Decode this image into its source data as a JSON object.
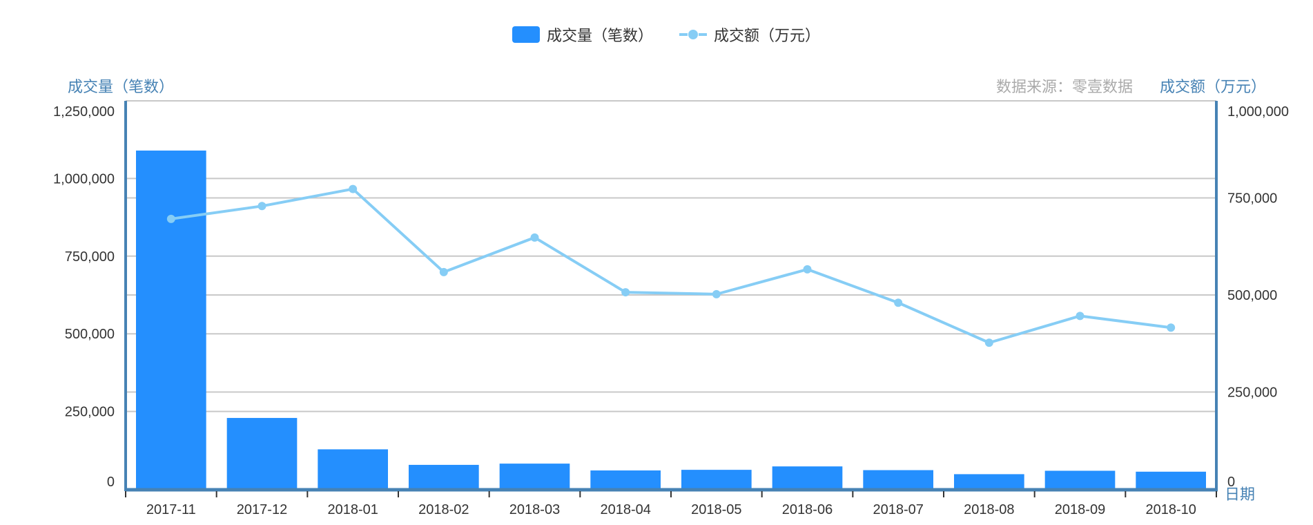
{
  "legend": {
    "bar_label": "成交量（笔数）",
    "line_label": "成交额（万元）"
  },
  "axes": {
    "left_title": "成交量（笔数）",
    "right_title": "成交额（万元）",
    "x_title": "日期",
    "source": "数据来源：零壹数据",
    "left_ticks": [
      "0",
      "250,000",
      "500,000",
      "750,000",
      "1,000,000",
      "1,250,000"
    ],
    "right_ticks": [
      "0",
      "250,000",
      "500,000",
      "750,000",
      "1,000,000"
    ]
  },
  "colors": {
    "bar": "#248ffe",
    "line": "#86cdf5",
    "axis": "#4682b4",
    "grid": "#c8c8c8",
    "tick_text": "#333333",
    "source_text": "#aaaaaa"
  },
  "chart_data": {
    "type": "bar",
    "title": "",
    "xlabel": "日期",
    "ylabel": "成交量（笔数）",
    "y2label": "成交额（万元）",
    "source": "数据来源：零壹数据",
    "categories": [
      "2017-11",
      "2017-12",
      "2018-01",
      "2018-02",
      "2018-03",
      "2018-04",
      "2018-05",
      "2018-06",
      "2018-07",
      "2018-08",
      "2018-09",
      "2018-10"
    ],
    "series": [
      {
        "name": "成交量（笔数）",
        "type": "bar",
        "axis": "left",
        "values": [
          1090000,
          229000,
          128000,
          78000,
          82000,
          60000,
          62000,
          73000,
          61000,
          48000,
          59000,
          56000
        ]
      },
      {
        "name": "成交额（万元）",
        "type": "line",
        "axis": "right",
        "values": [
          696000,
          729000,
          773000,
          559000,
          648000,
          507000,
          502000,
          566000,
          480000,
          377000,
          446000,
          416000
        ]
      }
    ],
    "ylim": [
      0,
      1250000
    ],
    "y2lim": [
      0,
      1000000
    ],
    "grid": true,
    "legend_position": "top"
  }
}
